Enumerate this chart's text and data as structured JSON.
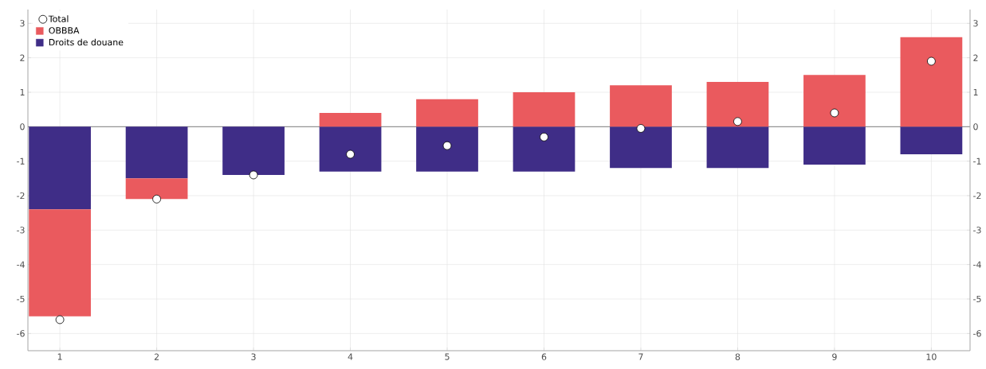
{
  "chart_data": {
    "type": "bar",
    "stacked": true,
    "categories": [
      "1",
      "2",
      "3",
      "4",
      "5",
      "6",
      "7",
      "8",
      "9",
      "10"
    ],
    "series": [
      {
        "name": "Droits de douane",
        "color": "#3f2d87",
        "values": [
          -2.4,
          -1.5,
          -1.4,
          -1.3,
          -1.3,
          -1.3,
          -1.2,
          -1.2,
          -1.1,
          -0.8
        ]
      },
      {
        "name": "OBBBA",
        "color": "#ea5a5e",
        "values": [
          -3.1,
          -0.6,
          0,
          0.4,
          0.8,
          1.0,
          1.2,
          1.3,
          1.5,
          2.6
        ]
      },
      {
        "name": "Total",
        "type": "scatter",
        "color": "#ffffff",
        "values": [
          -5.6,
          -2.1,
          -1.4,
          -0.8,
          -0.55,
          -0.3,
          -0.05,
          0.15,
          0.4,
          1.9
        ]
      }
    ],
    "ylim": [
      -6.5,
      3.4
    ],
    "yticks": [
      -6,
      -5,
      -4,
      -3,
      -2,
      -1,
      0,
      1,
      2,
      3
    ],
    "y2lim": [
      -6.5,
      3.4
    ],
    "y2ticks": [
      -6,
      -5,
      -4,
      -3,
      -2,
      -1,
      0,
      1,
      2,
      3
    ],
    "grid": true,
    "legend": "top left",
    "marker": "circle"
  }
}
